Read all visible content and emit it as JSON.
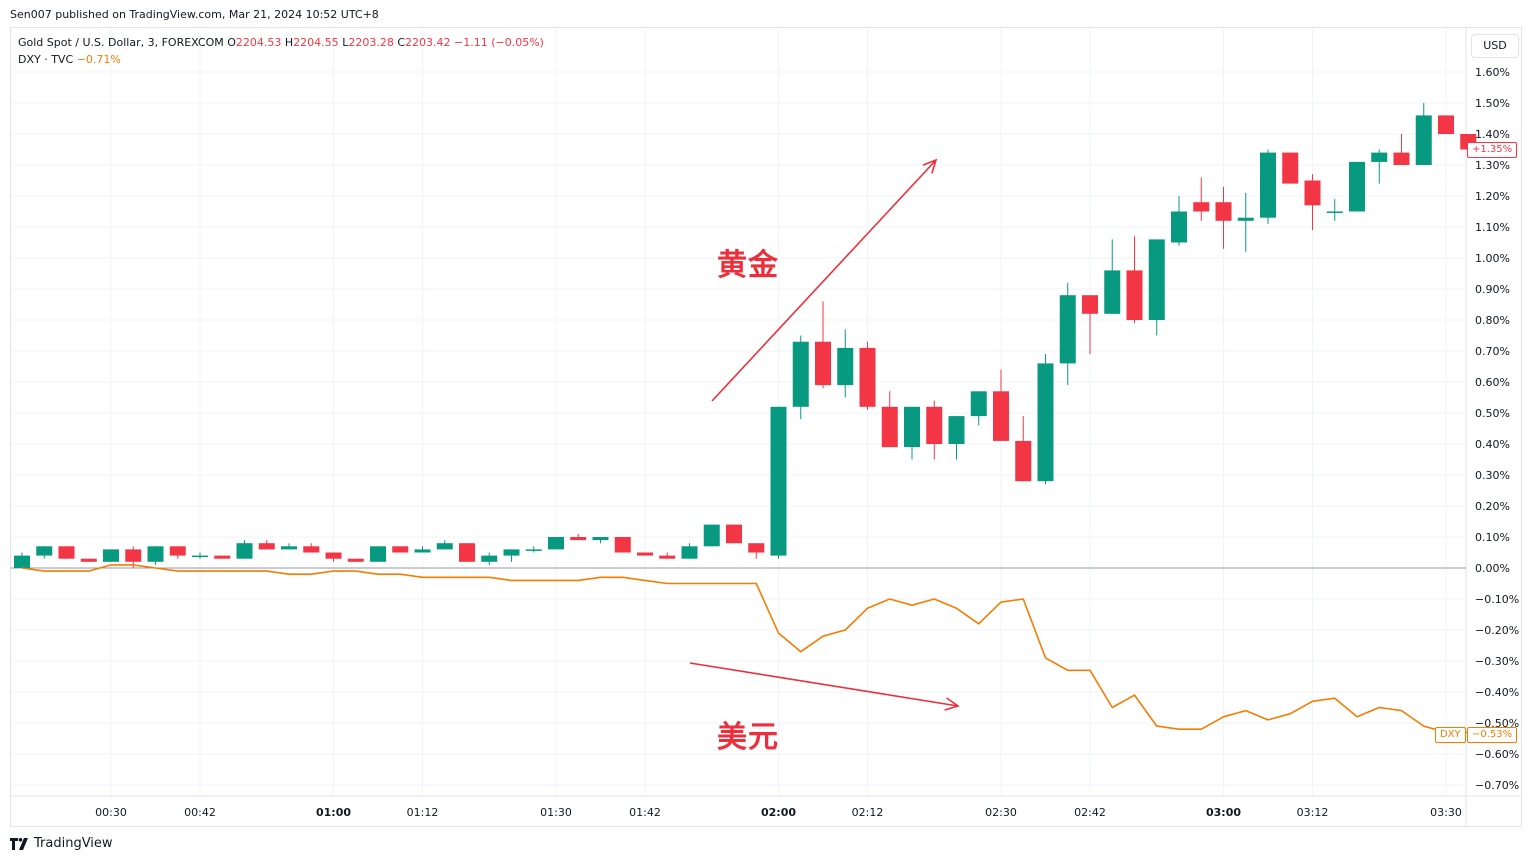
{
  "publisher": "Sen007 published on TradingView.com, Mar 21, 2024 10:52 UTC+8",
  "legend": {
    "symbol": "Gold Spot / U.S. Dollar, 3, FOREXCOM",
    "o_label": "O",
    "o": "2204.53",
    "h_label": "H",
    "h": "2204.55",
    "l_label": "L",
    "l": "2203.28",
    "c_label": "C",
    "c": "2203.42",
    "chg": "−1.11 (−0.05%)",
    "compare_symbol": "DXY · TVC",
    "compare_change": "−0.71%"
  },
  "currency_button": "USD",
  "last_labels": {
    "gold": "+1.35%",
    "dxy_name": "DXY",
    "dxy": "−0.53%"
  },
  "annotations": {
    "gold": "黄金",
    "dxy": "美元"
  },
  "brand": "TradingView",
  "colors": {
    "up": "#089981",
    "down": "#f23645",
    "dxy_line": "#f57c00",
    "arrow": "#ec2f3b",
    "grid": "#f0f3fa"
  },
  "chart_data": {
    "type": "candlestick",
    "y_unit": "% change",
    "ylim": [
      -0.76,
      1.66
    ],
    "y_ticks": [
      1.6,
      1.5,
      1.4,
      1.3,
      1.2,
      1.1,
      1.0,
      0.9,
      0.8,
      0.7,
      0.6,
      0.5,
      0.4,
      0.3,
      0.2,
      0.1,
      0.0,
      -0.1,
      -0.2,
      -0.3,
      -0.4,
      -0.5,
      -0.6,
      -0.7
    ],
    "y_tick_labels": [
      "1.60%",
      "1.50%",
      "1.40%",
      "1.30%",
      "1.20%",
      "1.10%",
      "1.00%",
      "0.90%",
      "0.80%",
      "0.70%",
      "0.60%",
      "0.50%",
      "0.40%",
      "0.30%",
      "0.20%",
      "0.10%",
      "0.00%",
      "−0.10%",
      "−0.20%",
      "−0.30%",
      "−0.40%",
      "−0.50%",
      "−0.60%",
      "−0.70%"
    ],
    "x_ticks": [
      {
        "label": "00:30",
        "i": 4,
        "bold": false
      },
      {
        "label": "00:42",
        "i": 8,
        "bold": false
      },
      {
        "label": "01:00",
        "i": 14,
        "bold": true
      },
      {
        "label": "01:12",
        "i": 18,
        "bold": false
      },
      {
        "label": "01:30",
        "i": 24,
        "bold": false
      },
      {
        "label": "01:42",
        "i": 28,
        "bold": false
      },
      {
        "label": "02:00",
        "i": 34,
        "bold": true
      },
      {
        "label": "02:12",
        "i": 38,
        "bold": false
      },
      {
        "label": "02:30",
        "i": 44,
        "bold": false
      },
      {
        "label": "02:42",
        "i": 48,
        "bold": false
      },
      {
        "label": "03:00",
        "i": 54,
        "bold": true
      },
      {
        "label": "03:12",
        "i": 58,
        "bold": false
      },
      {
        "label": "03:30",
        "i": 64,
        "bold": false
      }
    ],
    "series": [
      {
        "name": "Gold Spot / U.S. Dollar",
        "type": "candlestick",
        "ohlc": [
          [
            0.0,
            0.05,
            0.0,
            0.04
          ],
          [
            0.04,
            0.07,
            0.03,
            0.07
          ],
          [
            0.07,
            0.07,
            0.03,
            0.03
          ],
          [
            0.03,
            0.03,
            0.02,
            0.02
          ],
          [
            0.02,
            0.06,
            0.02,
            0.06
          ],
          [
            0.06,
            0.07,
            0.0,
            0.02
          ],
          [
            0.02,
            0.07,
            0.01,
            0.07
          ],
          [
            0.07,
            0.07,
            0.03,
            0.04
          ],
          [
            0.04,
            0.05,
            0.03,
            0.04
          ],
          [
            0.04,
            0.04,
            0.03,
            0.03
          ],
          [
            0.03,
            0.09,
            0.03,
            0.08
          ],
          [
            0.08,
            0.09,
            0.06,
            0.06
          ],
          [
            0.06,
            0.08,
            0.06,
            0.07
          ],
          [
            0.07,
            0.08,
            0.05,
            0.05
          ],
          [
            0.05,
            0.05,
            0.02,
            0.03
          ],
          [
            0.03,
            0.03,
            0.02,
            0.02
          ],
          [
            0.02,
            0.07,
            0.02,
            0.07
          ],
          [
            0.07,
            0.07,
            0.05,
            0.05
          ],
          [
            0.05,
            0.07,
            0.05,
            0.06
          ],
          [
            0.06,
            0.09,
            0.06,
            0.08
          ],
          [
            0.08,
            0.08,
            0.02,
            0.02
          ],
          [
            0.02,
            0.05,
            0.01,
            0.04
          ],
          [
            0.04,
            0.06,
            0.02,
            0.06
          ],
          [
            0.06,
            0.07,
            0.05,
            0.06
          ],
          [
            0.06,
            0.1,
            0.06,
            0.1
          ],
          [
            0.1,
            0.11,
            0.09,
            0.09
          ],
          [
            0.09,
            0.1,
            0.08,
            0.1
          ],
          [
            0.1,
            0.1,
            0.05,
            0.05
          ],
          [
            0.05,
            0.05,
            0.04,
            0.04
          ],
          [
            0.04,
            0.05,
            0.03,
            0.03
          ],
          [
            0.03,
            0.08,
            0.03,
            0.07
          ],
          [
            0.07,
            0.14,
            0.07,
            0.14
          ],
          [
            0.14,
            0.14,
            0.08,
            0.08
          ],
          [
            0.08,
            0.08,
            0.03,
            0.05
          ],
          [
            0.04,
            0.52,
            0.03,
            0.52
          ],
          [
            0.52,
            0.75,
            0.48,
            0.73
          ],
          [
            0.73,
            0.86,
            0.58,
            0.59
          ],
          [
            0.59,
            0.77,
            0.55,
            0.71
          ],
          [
            0.71,
            0.73,
            0.51,
            0.52
          ],
          [
            0.52,
            0.57,
            0.39,
            0.39
          ],
          [
            0.39,
            0.52,
            0.35,
            0.52
          ],
          [
            0.52,
            0.54,
            0.35,
            0.4
          ],
          [
            0.4,
            0.49,
            0.35,
            0.49
          ],
          [
            0.49,
            0.57,
            0.46,
            0.57
          ],
          [
            0.57,
            0.64,
            0.41,
            0.41
          ],
          [
            0.41,
            0.49,
            0.28,
            0.28
          ],
          [
            0.28,
            0.69,
            0.27,
            0.66
          ],
          [
            0.66,
            0.92,
            0.59,
            0.88
          ],
          [
            0.88,
            0.88,
            0.69,
            0.82
          ],
          [
            0.82,
            1.06,
            0.82,
            0.96
          ],
          [
            0.96,
            1.07,
            0.79,
            0.8
          ],
          [
            0.8,
            1.06,
            0.75,
            1.06
          ],
          [
            1.05,
            1.2,
            1.04,
            1.15
          ],
          [
            1.18,
            1.26,
            1.12,
            1.15
          ],
          [
            1.18,
            1.23,
            1.03,
            1.12
          ],
          [
            1.12,
            1.21,
            1.02,
            1.13
          ],
          [
            1.13,
            1.35,
            1.11,
            1.34
          ],
          [
            1.34,
            1.34,
            1.24,
            1.24
          ],
          [
            1.25,
            1.27,
            1.09,
            1.17
          ],
          [
            1.15,
            1.19,
            1.12,
            1.15
          ],
          [
            1.15,
            1.31,
            1.15,
            1.31
          ],
          [
            1.31,
            1.35,
            1.24,
            1.34
          ],
          [
            1.34,
            1.4,
            1.3,
            1.3
          ],
          [
            1.3,
            1.5,
            1.3,
            1.46
          ],
          [
            1.46,
            1.46,
            1.4,
            1.4
          ],
          [
            1.4,
            1.4,
            1.35,
            1.35
          ]
        ]
      },
      {
        "name": "DXY · TVC",
        "type": "line",
        "values": [
          0.0,
          -0.01,
          -0.01,
          -0.01,
          0.01,
          0.01,
          0.0,
          -0.01,
          -0.01,
          -0.01,
          -0.01,
          -0.01,
          -0.02,
          -0.02,
          -0.01,
          -0.01,
          -0.02,
          -0.02,
          -0.03,
          -0.03,
          -0.03,
          -0.03,
          -0.04,
          -0.04,
          -0.04,
          -0.04,
          -0.03,
          -0.03,
          -0.04,
          -0.05,
          -0.05,
          -0.05,
          -0.05,
          -0.05,
          -0.21,
          -0.27,
          -0.22,
          -0.2,
          -0.13,
          -0.1,
          -0.12,
          -0.1,
          -0.13,
          -0.18,
          -0.11,
          -0.1,
          -0.29,
          -0.33,
          -0.33,
          -0.45,
          -0.41,
          -0.51,
          -0.52,
          -0.52,
          -0.48,
          -0.46,
          -0.49,
          -0.47,
          -0.43,
          -0.42,
          -0.48,
          -0.45,
          -0.46,
          -0.51,
          -0.53,
          -0.53
        ]
      }
    ]
  }
}
